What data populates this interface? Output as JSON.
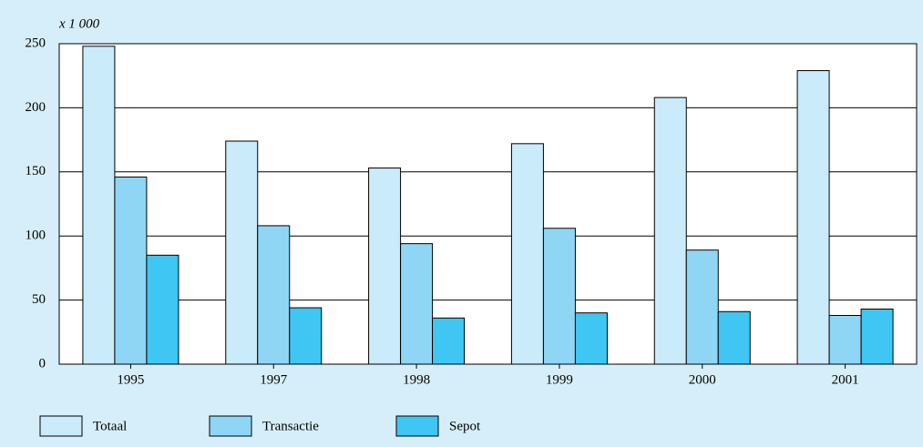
{
  "chart_data": {
    "type": "bar",
    "y_unit": "x 1 000",
    "categories": [
      "1995",
      "1997",
      "1998",
      "1999",
      "2000",
      "2001"
    ],
    "series": [
      {
        "name": "Totaal",
        "color": "#c9ebfa",
        "values": [
          248,
          174,
          153,
          172,
          208,
          229
        ]
      },
      {
        "name": "Transactie",
        "color": "#8fd6f5",
        "values": [
          146,
          108,
          94,
          106,
          89,
          38
        ]
      },
      {
        "name": "Sepot",
        "color": "#3fc6f2",
        "values": [
          85,
          44,
          36,
          40,
          41,
          43
        ]
      }
    ],
    "ylim": [
      0,
      250
    ],
    "yticks": [
      0,
      50,
      100,
      150,
      200,
      250
    ],
    "grid": true,
    "legend": "bottom"
  }
}
